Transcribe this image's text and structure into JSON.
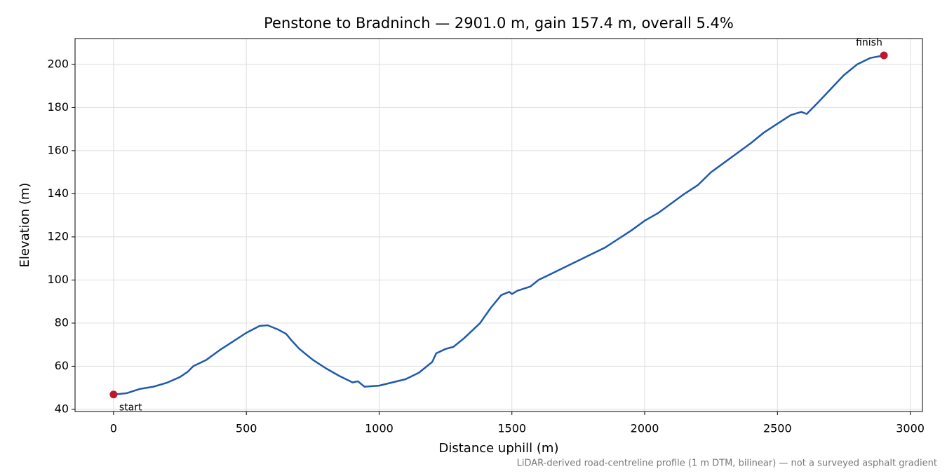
{
  "chart_data": {
    "type": "line",
    "title": "Penstone to Bradninch — 2901.0 m, gain 157.4 m, overall 5.4%",
    "xlabel": "Distance uphill (m)",
    "ylabel": "Elevation (m)",
    "footnote": "LiDAR-derived road-centreline profile (1 m DTM, bilinear) — not a surveyed asphalt gradient",
    "x": [
      0,
      50,
      100,
      150,
      200,
      250,
      280,
      300,
      350,
      400,
      450,
      500,
      550,
      580,
      620,
      650,
      670,
      700,
      750,
      800,
      850,
      900,
      920,
      945,
      1000,
      1050,
      1100,
      1150,
      1170,
      1200,
      1215,
      1250,
      1280,
      1320,
      1380,
      1420,
      1460,
      1490,
      1500,
      1520,
      1570,
      1600,
      1650,
      1700,
      1750,
      1800,
      1850,
      1900,
      1950,
      2000,
      2050,
      2100,
      2150,
      2200,
      2250,
      2300,
      2350,
      2400,
      2450,
      2500,
      2550,
      2590,
      2610,
      2650,
      2700,
      2750,
      2800,
      2850,
      2901
    ],
    "series": [
      {
        "name": "Elevation",
        "color": "#1f5aad",
        "values": [
          46.9,
          47.5,
          49.5,
          50.5,
          52.3,
          55.0,
          57.5,
          60,
          63,
          67.5,
          71.5,
          75.5,
          78.7,
          79,
          77,
          75,
          72,
          68,
          63,
          59,
          55.5,
          52.5,
          53,
          50.5,
          51,
          52.5,
          54,
          57,
          59,
          62,
          66,
          68,
          69,
          73,
          80,
          87,
          93,
          94.5,
          93.5,
          95,
          97,
          100,
          103,
          106,
          109,
          112,
          115,
          119,
          123,
          127.5,
          131,
          135.5,
          140,
          144,
          150,
          154.5,
          159,
          163.5,
          168.5,
          172.5,
          176.5,
          178,
          177,
          182,
          188.5,
          195,
          200,
          203,
          204.2
        ]
      }
    ],
    "points": [
      {
        "label": "start",
        "x": 0,
        "y": 46.9
      },
      {
        "label": "finish",
        "x": 2901,
        "y": 204.2
      }
    ],
    "point_color": "#c0182a",
    "xlim": [
      -145,
      3046
    ],
    "ylim": [
      39,
      212
    ],
    "xticks": [
      0,
      500,
      1000,
      1500,
      2000,
      2500,
      3000
    ],
    "yticks": [
      40,
      60,
      80,
      100,
      120,
      140,
      160,
      180,
      200
    ],
    "grid": true
  }
}
